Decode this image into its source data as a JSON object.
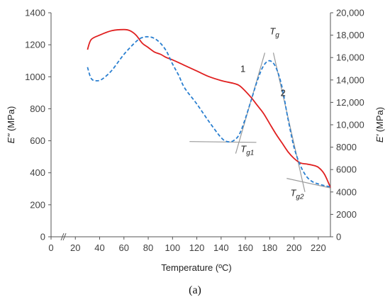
{
  "chart_data": {
    "type": "line",
    "xlabel": "Temperature (ºC)",
    "ylabel_left_main": "E''",
    "ylabel_left_unit": " (MPa)",
    "ylabel_right_main": "E'",
    "ylabel_right_unit": " (MPa)",
    "panel_label": "(a)",
    "xlim": [
      0,
      230
    ],
    "ylim_left": [
      0,
      1400
    ],
    "ylim_right": [
      0,
      20000
    ],
    "x_ticks": [
      "0",
      "20",
      "40",
      "60",
      "80",
      "100",
      "120",
      "140",
      "160",
      "180",
      "200",
      "220"
    ],
    "y_left_ticks": [
      "0",
      "200",
      "400",
      "600",
      "800",
      "1000",
      "1200",
      "1400"
    ],
    "y_right_ticks": [
      "0",
      "2000",
      "4000",
      "6000",
      "8000",
      "10,000",
      "12,000",
      "14,000",
      "16,000",
      "18,000",
      "20,000"
    ],
    "series": [
      {
        "name": "1",
        "axis": "right",
        "color": "#e02020",
        "style": "solid",
        "x": [
          30,
          33,
          40,
          50,
          60,
          65,
          70,
          75,
          80,
          85,
          90,
          95,
          100,
          110,
          120,
          130,
          140,
          150,
          155,
          160,
          165,
          170,
          175,
          180,
          185,
          190,
          195,
          200,
          205,
          210,
          215,
          220,
          225,
          230
        ],
        "y": [
          16700,
          17600,
          18000,
          18400,
          18500,
          18400,
          18000,
          17300,
          16900,
          16500,
          16300,
          16000,
          15800,
          15300,
          14800,
          14300,
          13950,
          13700,
          13500,
          13000,
          12400,
          11700,
          11000,
          10100,
          9200,
          8400,
          7600,
          7000,
          6600,
          6500,
          6400,
          6200,
          5600,
          4400
        ]
      },
      {
        "name": "2",
        "axis": "left",
        "color": "#2a7fd0",
        "style": "dashed",
        "x": [
          30,
          33,
          37,
          42,
          50,
          60,
          70,
          75,
          80,
          85,
          90,
          95,
          100,
          105,
          110,
          120,
          130,
          140,
          145,
          150,
          155,
          160,
          165,
          170,
          175,
          180,
          185,
          190,
          195,
          200,
          205,
          210,
          215,
          220,
          225,
          230
        ],
        "y": [
          1060,
          990,
          975,
          985,
          1040,
          1140,
          1220,
          1245,
          1250,
          1240,
          1210,
          1160,
          1080,
          1010,
          930,
          830,
          720,
          620,
          595,
          600,
          640,
          740,
          860,
          980,
          1070,
          1100,
          1060,
          940,
          740,
          560,
          450,
          380,
          345,
          330,
          320,
          312
        ]
      }
    ],
    "annotations": [
      {
        "label": "1",
        "x": 158,
        "y": 1030
      },
      {
        "label": "2",
        "x": 191,
        "y": 880
      },
      {
        "label_main": "T",
        "label_sub": "g",
        "x": 180,
        "y": 1265
      },
      {
        "label_main": "T",
        "label_sub": "g1",
        "x": 156,
        "y": 530
      },
      {
        "label_main": "T",
        "label_sub": "g2",
        "x": 197,
        "y": 255
      }
    ],
    "tangent_lines": [
      {
        "x1": 114,
        "y1": 595,
        "x2": 169,
        "y2": 590
      },
      {
        "x1": 152,
        "y1": 520,
        "x2": 176,
        "y2": 1150
      },
      {
        "x1": 183,
        "y1": 1150,
        "x2": 209,
        "y2": 280
      },
      {
        "x1": 194,
        "y1": 365,
        "x2": 230,
        "y2": 305
      }
    ],
    "grid": false
  }
}
